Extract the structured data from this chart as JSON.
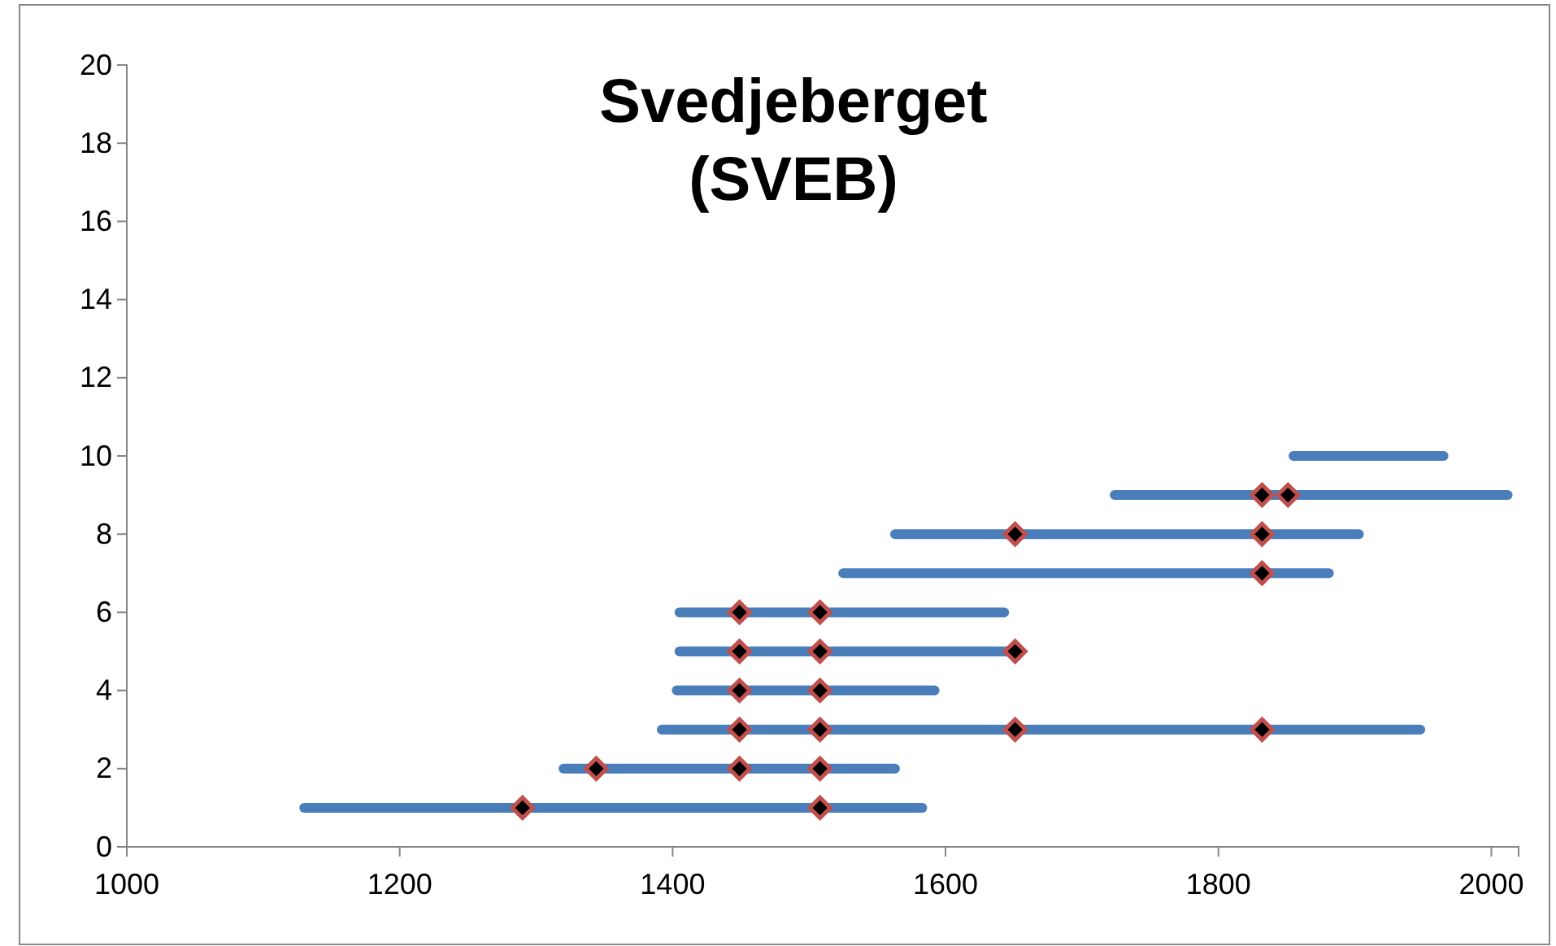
{
  "chart_data": {
    "type": "line",
    "title": "Svedjeberget\n(SVEB)",
    "xlim": [
      1000,
      2020
    ],
    "xticks": [
      1000,
      1200,
      1400,
      1600,
      1800,
      2000
    ],
    "ylim": [
      0,
      20
    ],
    "yticks": [
      0,
      2,
      4,
      6,
      8,
      10,
      12,
      14,
      16,
      18,
      20
    ],
    "grid": false,
    "line_style": "solid",
    "marker": "none",
    "series": [
      {
        "color": "#4a7ebb",
        "x": [
          1130,
          1583
        ],
        "values": [
          1,
          1
        ]
      },
      {
        "color": "#4a7ebb",
        "x": [
          1320,
          1563
        ],
        "values": [
          2,
          2
        ]
      },
      {
        "color": "#4a7ebb",
        "x": [
          1392,
          1948
        ],
        "values": [
          3,
          3
        ]
      },
      {
        "color": "#4a7ebb",
        "x": [
          1403,
          1592
        ],
        "values": [
          4,
          4
        ]
      },
      {
        "color": "#4a7ebb",
        "x": [
          1405,
          1651
        ],
        "values": [
          5,
          5
        ]
      },
      {
        "color": "#4a7ebb",
        "x": [
          1405,
          1643
        ],
        "values": [
          6,
          6
        ]
      },
      {
        "color": "#4a7ebb",
        "x": [
          1525,
          1881
        ],
        "values": [
          7,
          7
        ]
      },
      {
        "color": "#4a7ebb",
        "x": [
          1563,
          1903
        ],
        "values": [
          8,
          8
        ]
      },
      {
        "color": "#4a7ebb",
        "x": [
          1724,
          2012
        ],
        "values": [
          9,
          9
        ]
      },
      {
        "color": "#4a7ebb",
        "x": [
          1855,
          1965
        ],
        "values": [
          10,
          10
        ]
      },
      {
        "type": "scatter",
        "color": "#000000",
        "marker": "diamond",
        "x": [
          1290,
          1508,
          1344,
          1449,
          1508,
          1449,
          1508,
          1651,
          1832,
          1449,
          1508,
          1449,
          1508,
          1651,
          1449,
          1508,
          1832,
          1651,
          1832,
          1832,
          1851
        ],
        "values": [
          1,
          1,
          2,
          2,
          2,
          3,
          3,
          3,
          3,
          4,
          4,
          5,
          5,
          5,
          6,
          6,
          7,
          8,
          8,
          9,
          9
        ]
      }
    ]
  }
}
